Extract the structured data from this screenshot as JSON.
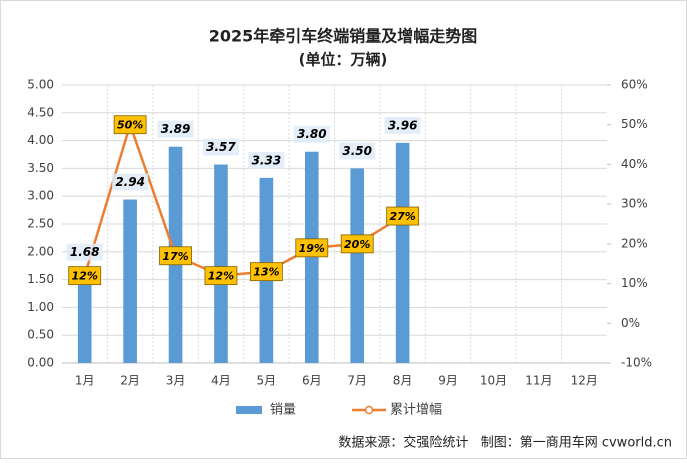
{
  "chart_data": {
    "type": "combo",
    "title": "2025年牵引车终端销量及增幅走势图",
    "subtitle": "(单位：万辆)",
    "categories": [
      "1月",
      "2月",
      "3月",
      "4月",
      "5月",
      "6月",
      "7月",
      "8月",
      "9月",
      "10月",
      "11月",
      "12月"
    ],
    "series": [
      {
        "name": "销量",
        "type": "bar",
        "color": "#5b9bd5",
        "values": [
          1.68,
          2.94,
          3.89,
          3.57,
          3.33,
          3.8,
          3.5,
          3.96,
          null,
          null,
          null,
          null
        ],
        "value_labels": [
          "1.68",
          "2.94",
          "3.89",
          "3.57",
          "3.33",
          "3.80",
          "3.50",
          "3.96",
          null,
          null,
          null,
          null
        ]
      },
      {
        "name": "累计增幅",
        "type": "line",
        "axis": "y2",
        "color": "#ed7d31",
        "values": [
          12,
          50,
          17,
          12,
          13,
          19,
          20,
          27,
          null,
          null,
          null,
          null
        ],
        "value_labels": [
          "12%",
          "50%",
          "17%",
          "12%",
          "13%",
          "19%",
          "20%",
          "27%",
          null,
          null,
          null,
          null
        ]
      }
    ],
    "ylim": [
      0,
      5
    ],
    "yticks": [
      {
        "value": 0,
        "label": "0.00"
      },
      {
        "value": 0.5,
        "label": "0.50"
      },
      {
        "value": 1,
        "label": "1.00"
      },
      {
        "value": 1.5,
        "label": "1.50"
      },
      {
        "value": 2,
        "label": "2.00"
      },
      {
        "value": 2.5,
        "label": "2.50"
      },
      {
        "value": 3,
        "label": "3.00"
      },
      {
        "value": 3.5,
        "label": "3.50"
      },
      {
        "value": 4,
        "label": "4.00"
      },
      {
        "value": 4.5,
        "label": "4.50"
      },
      {
        "value": 5,
        "label": "5.00"
      }
    ],
    "y2lim": [
      -10,
      60
    ],
    "y2ticks": [
      {
        "value": -10,
        "label": "-10%"
      },
      {
        "value": 0,
        "label": "0%"
      },
      {
        "value": 10,
        "label": "10%"
      },
      {
        "value": 20,
        "label": "20%"
      },
      {
        "value": 30,
        "label": "30%"
      },
      {
        "value": 40,
        "label": "40%"
      },
      {
        "value": 50,
        "label": "50%"
      },
      {
        "value": 60,
        "label": "60%"
      }
    ],
    "grid": true,
    "legend": "bottom"
  },
  "source": "数据来源：交强险统计   制图：第一商用车网 cvworld.cn"
}
